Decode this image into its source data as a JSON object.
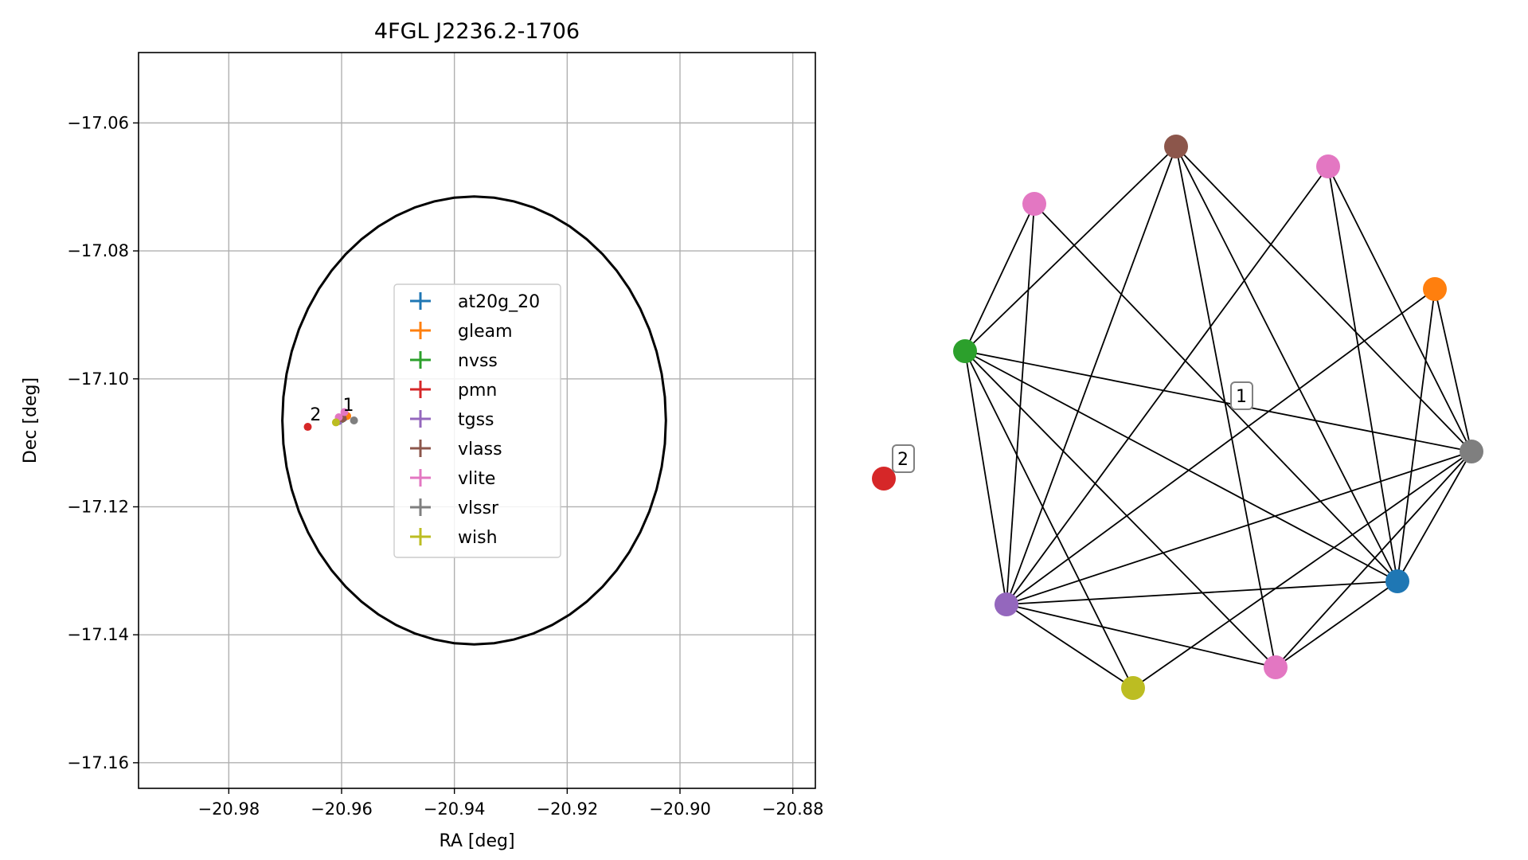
{
  "chart_data": [
    {
      "type": "scatter",
      "title": "4FGL J2236.2-1706",
      "xlabel": "RA [deg]",
      "ylabel": "Dec [deg]",
      "xlim": [
        -20.996,
        -20.876
      ],
      "ylim": [
        -17.164,
        -17.049
      ],
      "xticks": [
        -20.98,
        -20.96,
        -20.94,
        -20.92,
        -20.9,
        -20.88
      ],
      "xtick_labels": [
        "−20.98",
        "−20.96",
        "−20.94",
        "−20.92",
        "−20.90",
        "−20.88"
      ],
      "yticks": [
        -17.06,
        -17.08,
        -17.1,
        -17.12,
        -17.14,
        -17.16
      ],
      "ytick_labels": [
        "−17.06",
        "−17.08",
        "−17.10",
        "−17.12",
        "−17.14",
        "−17.16"
      ],
      "grid": true,
      "ellipse": {
        "center": [
          -20.9365,
          -17.1065
        ],
        "ra_radius": 0.034,
        "dec_radius": 0.035,
        "color": "#000000"
      },
      "legend_position": "center",
      "series": [
        {
          "name": "at20g_20",
          "color": "#1f77b4",
          "points": [
            [
              -20.9595,
              -17.106
            ]
          ]
        },
        {
          "name": "gleam",
          "color": "#ff7f0e",
          "points": [
            [
              -20.959,
              -17.1058
            ]
          ]
        },
        {
          "name": "nvss",
          "color": "#2ca02c",
          "points": [
            [
              -20.96,
              -17.1063
            ]
          ]
        },
        {
          "name": "pmn",
          "color": "#d62728",
          "points": [
            [
              -20.966,
              -17.1075
            ]
          ]
        },
        {
          "name": "tgss",
          "color": "#9467bd",
          "points": [
            [
              -20.9605,
              -17.1066
            ]
          ]
        },
        {
          "name": "vlass",
          "color": "#8c564b",
          "points": [
            [
              -20.9598,
              -17.1062
            ]
          ]
        },
        {
          "name": "vlite",
          "color": "#e377c2",
          "points": [
            [
              -20.9595,
              -17.1052
            ],
            [
              -20.9605,
              -17.106
            ]
          ]
        },
        {
          "name": "vlssr",
          "color": "#7f7f7f",
          "points": [
            [
              -20.9578,
              -17.1065
            ]
          ]
        },
        {
          "name": "wish",
          "color": "#bcbd22",
          "points": [
            [
              -20.961,
              -17.1068
            ]
          ]
        }
      ],
      "annotations": [
        {
          "text": "1",
          "at": [
            -20.9588,
            -17.104
          ]
        },
        {
          "text": "2",
          "at": [
            -20.9646,
            -17.1055
          ]
        }
      ]
    },
    {
      "type": "network",
      "nodes": [
        {
          "id": "brown",
          "color": "#8c564b"
        },
        {
          "id": "pink_top",
          "color": "#e377c2"
        },
        {
          "id": "pink_left",
          "color": "#e377c2"
        },
        {
          "id": "orange",
          "color": "#ff7f0e"
        },
        {
          "id": "green",
          "color": "#2ca02c"
        },
        {
          "id": "gray",
          "color": "#7f7f7f"
        },
        {
          "id": "blue",
          "color": "#1f77b4"
        },
        {
          "id": "purple",
          "color": "#9467bd"
        },
        {
          "id": "pink_bottom",
          "color": "#e377c2"
        },
        {
          "id": "olive",
          "color": "#bcbd22"
        },
        {
          "id": "red",
          "color": "#d62728"
        }
      ],
      "edges": [
        [
          "pink_left",
          "green"
        ],
        [
          "pink_left",
          "purple"
        ],
        [
          "pink_left",
          "blue"
        ],
        [
          "brown",
          "green"
        ],
        [
          "brown",
          "purple"
        ],
        [
          "brown",
          "gray"
        ],
        [
          "brown",
          "blue"
        ],
        [
          "brown",
          "pink_bottom"
        ],
        [
          "pink_top",
          "purple"
        ],
        [
          "pink_top",
          "gray"
        ],
        [
          "pink_top",
          "blue"
        ],
        [
          "orange",
          "purple"
        ],
        [
          "orange",
          "gray"
        ],
        [
          "orange",
          "blue"
        ],
        [
          "green",
          "gray"
        ],
        [
          "green",
          "blue"
        ],
        [
          "green",
          "purple"
        ],
        [
          "green",
          "pink_bottom"
        ],
        [
          "green",
          "olive"
        ],
        [
          "gray",
          "purple"
        ],
        [
          "gray",
          "blue"
        ],
        [
          "gray",
          "pink_bottom"
        ],
        [
          "gray",
          "olive"
        ],
        [
          "blue",
          "purple"
        ],
        [
          "blue",
          "pink_bottom"
        ],
        [
          "purple",
          "olive"
        ],
        [
          "purple",
          "pink_bottom"
        ]
      ],
      "labels": [
        {
          "text": "1",
          "group": "component-1"
        },
        {
          "text": "2",
          "group": "red"
        }
      ]
    }
  ]
}
